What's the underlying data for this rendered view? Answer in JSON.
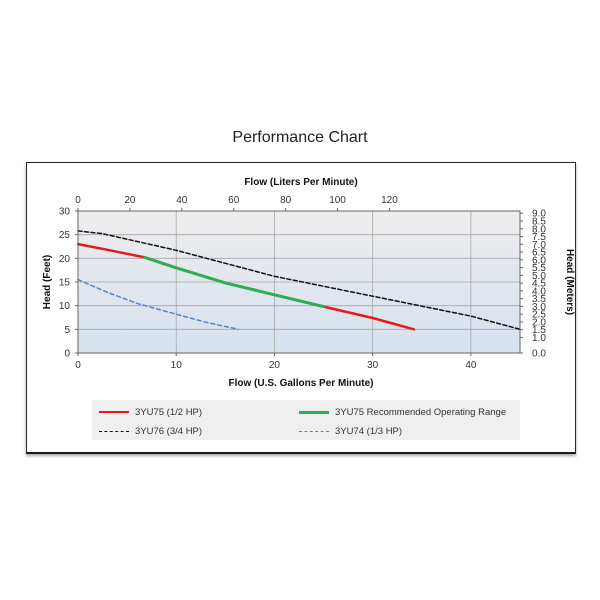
{
  "title": "Performance Chart",
  "chart_data": {
    "type": "line",
    "xlabel": "Flow (U.S. Gallons Per Minute)",
    "x2label": "Flow (Liters Per Minute)",
    "ylabel": "Head (Feet)",
    "y2label": "Head (Meters)",
    "xlim": [
      0,
      45
    ],
    "ylim": [
      0,
      30
    ],
    "x2lim": [
      0,
      170.3
    ],
    "y2lim": [
      0,
      9.144
    ],
    "x_ticks": [
      0,
      10,
      20,
      30,
      40
    ],
    "x2_ticks": [
      0,
      20,
      40,
      60,
      80,
      100,
      120
    ],
    "y_ticks": [
      0,
      5,
      10,
      15,
      20,
      25,
      30
    ],
    "y2_ticks": [
      "0.0",
      "1.0",
      "1.5",
      "2.0",
      "2.5",
      "3.0",
      "3.5",
      "4.0",
      "4.5",
      "5.0",
      "5.5",
      "6.0",
      "6.5",
      "7.0",
      "7.5",
      "8.0",
      "8.5",
      "9.0"
    ],
    "grid": true,
    "legend_position": "bottom",
    "series": [
      {
        "name": "3YU75 (1/2 HP)",
        "color": "#e8191b",
        "style": "solid",
        "x": [
          0,
          3,
          6.8,
          10,
          15,
          20,
          25,
          30,
          34.2
        ],
        "y": [
          23,
          21.8,
          20.2,
          18,
          14.8,
          12.3,
          9.8,
          7.4,
          5
        ]
      },
      {
        "name": "3YU75 Recommended Operating Range",
        "color": "#2fac55",
        "style": "solid",
        "x": [
          6.8,
          10,
          15,
          20,
          25
        ],
        "y": [
          20.2,
          18,
          14.8,
          12.3,
          9.8
        ]
      },
      {
        "name": "3YU76 (3/4 HP)",
        "color": "#111111",
        "style": "dashed",
        "x": [
          0,
          2.5,
          10,
          20,
          30,
          40,
          45
        ],
        "y": [
          25.8,
          25.2,
          21.7,
          16.2,
          12,
          7.8,
          5
        ]
      },
      {
        "name": "3YU74 (1/3 HP)",
        "color": "#4f86d0",
        "style": "dashed",
        "x": [
          0,
          3,
          6,
          10,
          13,
          16.3
        ],
        "y": [
          15.5,
          12.8,
          10.5,
          8.2,
          6.5,
          5
        ]
      }
    ]
  }
}
